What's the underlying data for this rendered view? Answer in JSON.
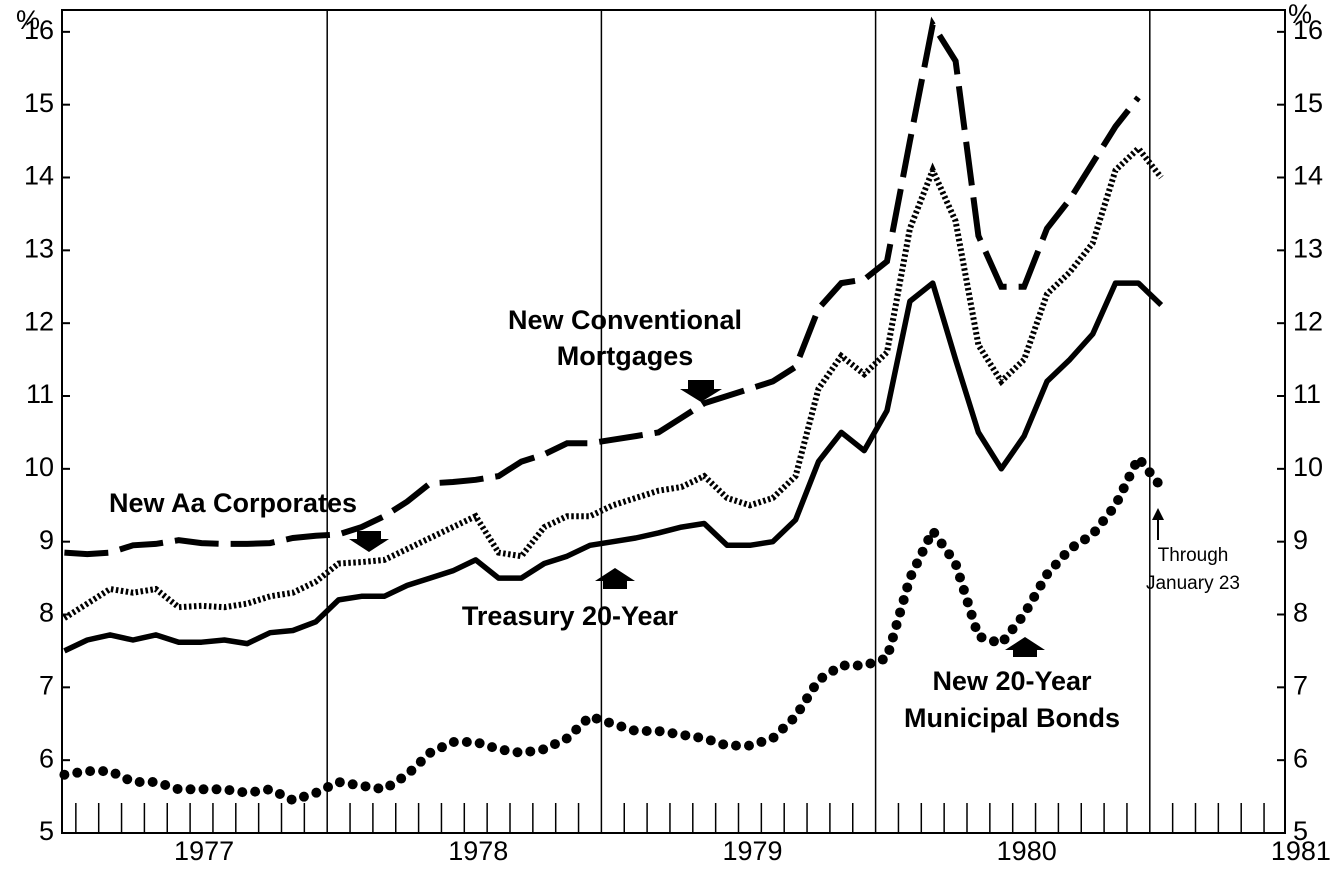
{
  "chart_data": {
    "type": "line",
    "y_label": "%",
    "y2_label": "%",
    "ylim": [
      5,
      16.3
    ],
    "yticks": [
      5,
      6,
      7,
      8,
      9,
      10,
      11,
      12,
      13,
      14,
      15,
      16
    ],
    "y2lim": [
      5,
      16.3
    ],
    "y2ticks": [
      5,
      6,
      7,
      8,
      9,
      10,
      11,
      12,
      13,
      14,
      15,
      16
    ],
    "categories": [
      null,
      null,
      null,
      null,
      null,
      null,
      null,
      null,
      null,
      null,
      null,
      null,
      null,
      null,
      null,
      null,
      null,
      null,
      null,
      null,
      null,
      null,
      null,
      null,
      null,
      null,
      null,
      null,
      null,
      null,
      null,
      null,
      null,
      null,
      null,
      null,
      null,
      null,
      null,
      null,
      null,
      null,
      null,
      null,
      null,
      null,
      null,
      null,
      null
    ],
    "year_labels": [
      "1977",
      "1978",
      "1979",
      "1980",
      "1981"
    ],
    "series": [
      {
        "style": "dashed",
        "color": "#000000",
        "values": [
          8.85,
          8.83,
          8.85,
          8.95,
          8.97,
          9.02,
          8.98,
          8.97,
          8.97,
          8.98,
          9.05,
          9.08,
          9.1,
          9.2,
          9.35,
          9.55,
          9.8,
          9.82,
          9.85,
          9.9,
          10.1,
          10.2,
          10.35,
          10.35,
          10.4,
          10.45,
          10.5,
          10.7,
          10.9,
          11.0,
          11.1,
          11.2,
          11.4,
          12.2,
          12.55,
          12.6,
          12.85,
          14.5,
          16.1,
          15.6,
          13.2,
          12.5,
          12.5,
          13.3,
          13.7,
          14.2,
          14.7,
          15.1,
          null
        ]
      },
      {
        "style": "dotted",
        "color": "#000000",
        "values": [
          7.95,
          8.15,
          8.35,
          8.3,
          8.35,
          8.1,
          8.12,
          8.1,
          8.15,
          8.25,
          8.3,
          8.45,
          8.7,
          8.72,
          8.75,
          8.9,
          9.05,
          9.2,
          9.35,
          8.85,
          8.8,
          9.2,
          9.35,
          9.35,
          9.5,
          9.6,
          9.7,
          9.75,
          9.9,
          9.6,
          9.5,
          9.6,
          9.9,
          11.1,
          11.55,
          11.3,
          11.6,
          13.3,
          14.1,
          13.4,
          11.7,
          11.2,
          11.5,
          12.4,
          12.7,
          13.1,
          14.1,
          14.4,
          14.0
        ]
      },
      {
        "style": "solid",
        "color": "#000000",
        "values": [
          7.5,
          7.65,
          7.72,
          7.65,
          7.72,
          7.62,
          7.62,
          7.65,
          7.6,
          7.75,
          7.78,
          7.9,
          8.2,
          8.25,
          8.25,
          8.4,
          8.5,
          8.6,
          8.75,
          8.5,
          8.5,
          8.7,
          8.8,
          8.95,
          9.0,
          9.05,
          9.12,
          9.2,
          9.25,
          8.95,
          8.95,
          9.0,
          9.3,
          10.1,
          10.5,
          10.25,
          10.8,
          12.3,
          12.55,
          11.5,
          10.5,
          10.0,
          10.45,
          11.2,
          11.5,
          11.85,
          12.55,
          12.55,
          12.25
        ]
      },
      {
        "style": "bigdots",
        "color": "#000000",
        "values": [
          5.8,
          5.85,
          5.85,
          5.7,
          5.7,
          5.6,
          5.6,
          5.6,
          5.55,
          5.6,
          5.45,
          5.55,
          5.7,
          5.65,
          5.6,
          5.8,
          6.1,
          6.25,
          6.25,
          6.15,
          6.1,
          6.15,
          6.3,
          6.6,
          6.5,
          6.4,
          6.4,
          6.35,
          6.3,
          6.2,
          6.2,
          6.3,
          6.6,
          7.1,
          7.3,
          7.3,
          7.4,
          8.5,
          9.15,
          8.7,
          7.7,
          7.6,
          8.0,
          8.55,
          8.9,
          9.1,
          9.5,
          10.15,
          9.75
        ]
      }
    ],
    "annotations": [
      {
        "lines": [
          "New Conventional",
          "Mortgages"
        ]
      },
      {
        "lines": [
          "New Aa Corporates"
        ]
      },
      {
        "lines": [
          "Treasury 20-Year"
        ]
      },
      {
        "lines": [
          "New 20-Year",
          "Municipal Bonds"
        ]
      },
      {
        "lines": [
          "Through",
          "January 23"
        ]
      }
    ]
  }
}
